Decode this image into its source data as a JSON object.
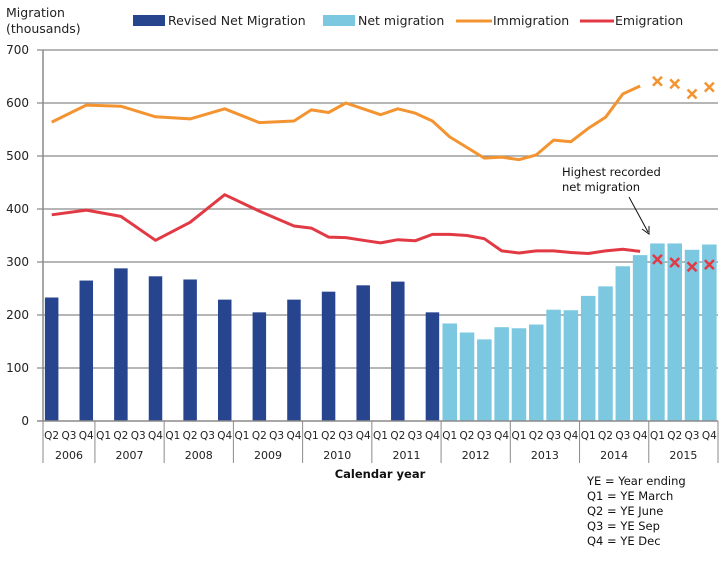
{
  "chart_data": {
    "type": "bar+line",
    "title": "",
    "ylabel": "Migration (thousands)",
    "xlabel": "Calendar year",
    "ylim": [
      0,
      700
    ],
    "yticks": [
      0,
      100,
      200,
      300,
      400,
      500,
      600,
      700
    ],
    "grid": true,
    "legend_position": "top",
    "categories": [
      "2006 Q2",
      "2006 Q3",
      "2006 Q4",
      "2007 Q1",
      "2007 Q2",
      "2007 Q3",
      "2007 Q4",
      "2008 Q1",
      "2008 Q2",
      "2008 Q3",
      "2008 Q4",
      "2009 Q1",
      "2009 Q2",
      "2009 Q3",
      "2009 Q4",
      "2010 Q1",
      "2010 Q2",
      "2010 Q3",
      "2010 Q4",
      "2011 Q1",
      "2011 Q2",
      "2011 Q3",
      "2011 Q4",
      "2012 Q1",
      "2012 Q2",
      "2012 Q3",
      "2012 Q4",
      "2013 Q1",
      "2013 Q2",
      "2013 Q3",
      "2013 Q4",
      "2014 Q1",
      "2014 Q2",
      "2014 Q3",
      "2014 Q4",
      "2015 Q1",
      "2015 Q2",
      "2015 Q3",
      "2015 Q4"
    ],
    "quarter_labels": [
      "Q2",
      "Q3",
      "Q4",
      "Q1",
      "Q2",
      "Q3",
      "Q4",
      "Q1",
      "Q2",
      "Q3",
      "Q4",
      "Q1",
      "Q2",
      "Q3",
      "Q4",
      "Q1",
      "Q2",
      "Q3",
      "Q4",
      "Q1",
      "Q2",
      "Q3",
      "Q4",
      "Q1",
      "Q2",
      "Q3",
      "Q4",
      "Q1",
      "Q2",
      "Q3",
      "Q4",
      "Q1",
      "Q2",
      "Q3",
      "Q4",
      "Q1",
      "Q2",
      "Q3",
      "Q4"
    ],
    "year_groups": [
      {
        "label": "2006",
        "span": 3
      },
      {
        "label": "2007",
        "span": 4
      },
      {
        "label": "2008",
        "span": 4
      },
      {
        "label": "2009",
        "span": 4
      },
      {
        "label": "2010",
        "span": 4
      },
      {
        "label": "2011",
        "span": 4
      },
      {
        "label": "2012",
        "span": 4
      },
      {
        "label": "2013",
        "span": 4
      },
      {
        "label": "2014",
        "span": 4
      },
      {
        "label": "2015",
        "span": 4
      }
    ],
    "series": [
      {
        "name": "Revised Net Migration",
        "type": "bar",
        "color": "#27448f",
        "values": [
          233,
          null,
          265,
          null,
          288,
          null,
          273,
          null,
          267,
          null,
          229,
          null,
          205,
          null,
          229,
          null,
          244,
          null,
          256,
          null,
          263,
          null,
          205,
          null,
          null,
          null,
          null,
          null,
          null,
          null,
          null,
          null,
          null,
          null,
          null,
          null,
          null,
          null,
          null
        ]
      },
      {
        "name": "Net migration",
        "type": "bar",
        "color": "#7cc8e1",
        "values": [
          null,
          null,
          null,
          null,
          null,
          null,
          null,
          null,
          null,
          null,
          null,
          null,
          null,
          null,
          null,
          null,
          null,
          null,
          null,
          null,
          null,
          null,
          null,
          184,
          167,
          154,
          177,
          175,
          182,
          210,
          209,
          236,
          254,
          292,
          313,
          335,
          335,
          323,
          333
        ]
      },
      {
        "name": "Immigration",
        "type": "line",
        "color": "#f39431",
        "values": [
          564,
          null,
          596,
          null,
          594,
          null,
          574,
          null,
          570,
          null,
          589,
          null,
          563,
          null,
          566,
          587,
          582,
          600,
          589,
          578,
          589,
          581,
          566,
          536,
          516,
          496,
          498,
          493,
          502,
          530,
          527,
          552,
          573,
          617,
          632,
          null,
          null,
          null,
          null
        ],
        "provisional_markers": [
          null,
          null,
          null,
          null,
          null,
          null,
          null,
          null,
          null,
          null,
          null,
          null,
          null,
          null,
          null,
          null,
          null,
          null,
          null,
          null,
          null,
          null,
          null,
          null,
          null,
          null,
          null,
          null,
          null,
          null,
          null,
          null,
          null,
          null,
          null,
          641,
          636,
          617,
          630
        ]
      },
      {
        "name": "Emigration",
        "type": "line",
        "color": "#e23a45",
        "values": [
          389,
          null,
          398,
          null,
          386,
          null,
          341,
          null,
          375,
          null,
          427,
          null,
          396,
          null,
          368,
          364,
          347,
          346,
          341,
          336,
          342,
          340,
          352,
          352,
          350,
          344,
          321,
          317,
          321,
          321,
          318,
          316,
          321,
          324,
          320,
          null,
          null,
          null,
          null
        ],
        "provisional_markers": [
          null,
          null,
          null,
          null,
          null,
          null,
          null,
          null,
          null,
          null,
          null,
          null,
          null,
          null,
          null,
          null,
          null,
          null,
          null,
          null,
          null,
          null,
          null,
          null,
          null,
          null,
          null,
          null,
          null,
          null,
          null,
          null,
          null,
          null,
          null,
          305,
          299,
          291,
          295
        ]
      }
    ],
    "annotations": [
      {
        "text_lines": [
          "Highest recorded",
          "net migration"
        ],
        "points_to": "2015 Q1"
      }
    ]
  },
  "yaxis_title_lines": [
    "Migration",
    "(thousands)"
  ],
  "legend": [
    {
      "label": "Revised Net Migration",
      "kind": "swatch",
      "color": "#27448f"
    },
    {
      "label": "Net migration",
      "kind": "swatch",
      "color": "#7cc8e1"
    },
    {
      "label": "Immigration",
      "kind": "line",
      "color": "#f39431"
    },
    {
      "label": "Emigration",
      "kind": "line",
      "color": "#e23a45"
    }
  ],
  "footnote": [
    "YE = Year ending",
    "Q1 = YE March",
    "Q2 = YE June",
    "Q3 = YE Sep",
    "Q4 = YE Dec"
  ]
}
